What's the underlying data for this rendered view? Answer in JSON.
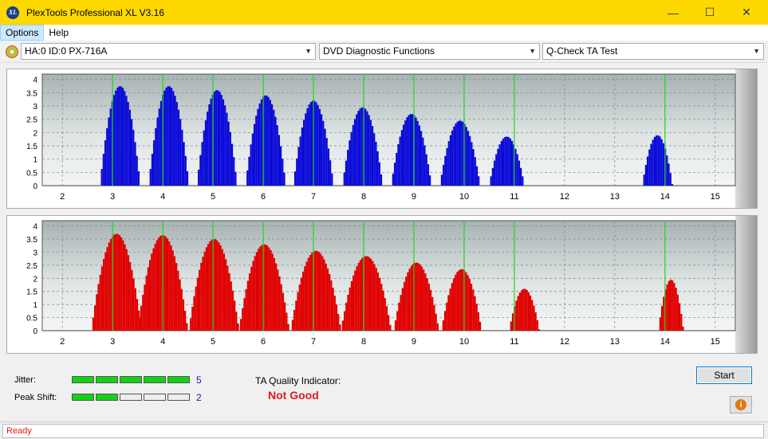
{
  "window": {
    "title": "PlexTools Professional XL V3.16",
    "icon_text": "XL",
    "minimize_glyph": "—",
    "maximize_glyph": "☐",
    "close_glyph": "✕"
  },
  "menu": {
    "items": [
      "Options",
      "Help"
    ]
  },
  "toolbar": {
    "drive": "HA:0 ID:0  PX-716A",
    "function": "DVD Diagnostic Functions",
    "test": "Q-Check TA Test",
    "dropdown_glyph": "▼"
  },
  "colors": {
    "titlebar": "#ffd800",
    "land_bars": "#0a0ad8",
    "pit_bars": "#e00000",
    "marker_lines": "#1ed81e",
    "status_text": "#e01b1b"
  },
  "chart_data": [
    {
      "name": "top",
      "type": "bar",
      "color": "#0a0ad8",
      "ylim": [
        0,
        4.2
      ],
      "xlim": [
        1.6,
        15.4
      ],
      "yticks": [
        "4",
        "3.5",
        "3",
        "2.5",
        "2",
        "1.5",
        "1",
        "0.5",
        "0"
      ],
      "xticks": [
        "2",
        "3",
        "4",
        "5",
        "6",
        "7",
        "8",
        "9",
        "10",
        "11",
        "12",
        "13",
        "14",
        "15"
      ],
      "marker_lines": [
        3,
        4,
        5,
        6,
        7,
        8,
        9,
        10,
        11,
        14
      ],
      "peaks": [
        {
          "center": 3.15,
          "height": 3.75,
          "halfwidth": 0.4
        },
        {
          "center": 4.12,
          "height": 3.75,
          "halfwidth": 0.4
        },
        {
          "center": 5.08,
          "height": 3.6,
          "halfwidth": 0.4
        },
        {
          "center": 6.05,
          "height": 3.4,
          "halfwidth": 0.4
        },
        {
          "center": 7.0,
          "height": 3.2,
          "halfwidth": 0.4
        },
        {
          "center": 7.98,
          "height": 2.95,
          "halfwidth": 0.4
        },
        {
          "center": 8.95,
          "height": 2.7,
          "halfwidth": 0.4
        },
        {
          "center": 9.92,
          "height": 2.45,
          "halfwidth": 0.4
        },
        {
          "center": 10.85,
          "height": 1.85,
          "halfwidth": 0.35
        },
        {
          "center": 13.85,
          "height": 1.9,
          "halfwidth": 0.3
        }
      ]
    },
    {
      "name": "bottom",
      "type": "bar",
      "color": "#e00000",
      "ylim": [
        0,
        4.2
      ],
      "xlim": [
        1.6,
        15.4
      ],
      "yticks": [
        "4",
        "3.5",
        "3",
        "2.5",
        "2",
        "1.5",
        "1",
        "0.5",
        "0"
      ],
      "xticks": [
        "2",
        "3",
        "4",
        "5",
        "6",
        "7",
        "8",
        "9",
        "10",
        "11",
        "12",
        "13",
        "14",
        "15"
      ],
      "marker_lines": [
        3,
        4,
        5,
        6,
        7,
        8,
        9,
        10,
        11,
        14
      ],
      "peaks": [
        {
          "center": 3.08,
          "height": 3.7,
          "halfwidth": 0.5
        },
        {
          "center": 4.0,
          "height": 3.65,
          "halfwidth": 0.5
        },
        {
          "center": 5.02,
          "height": 3.5,
          "halfwidth": 0.5
        },
        {
          "center": 6.02,
          "height": 3.3,
          "halfwidth": 0.5
        },
        {
          "center": 7.05,
          "height": 3.05,
          "halfwidth": 0.5
        },
        {
          "center": 8.05,
          "height": 2.85,
          "halfwidth": 0.5
        },
        {
          "center": 9.05,
          "height": 2.6,
          "halfwidth": 0.45
        },
        {
          "center": 9.95,
          "height": 2.35,
          "halfwidth": 0.4
        },
        {
          "center": 11.2,
          "height": 1.6,
          "halfwidth": 0.3
        },
        {
          "center": 14.12,
          "height": 1.95,
          "halfwidth": 0.25
        }
      ]
    }
  ],
  "results": {
    "jitter_label": "Jitter:",
    "jitter_value": "5",
    "jitter_level": 5,
    "peak_shift_label": "Peak Shift:",
    "peak_shift_value": "2",
    "peak_shift_level": 2,
    "meter_segments": 5,
    "ta_quality_label": "TA Quality Indicator:",
    "ta_quality_value": "Not Good"
  },
  "buttons": {
    "start": "Start",
    "info_glyph": "i"
  },
  "status": {
    "text": "Ready"
  }
}
